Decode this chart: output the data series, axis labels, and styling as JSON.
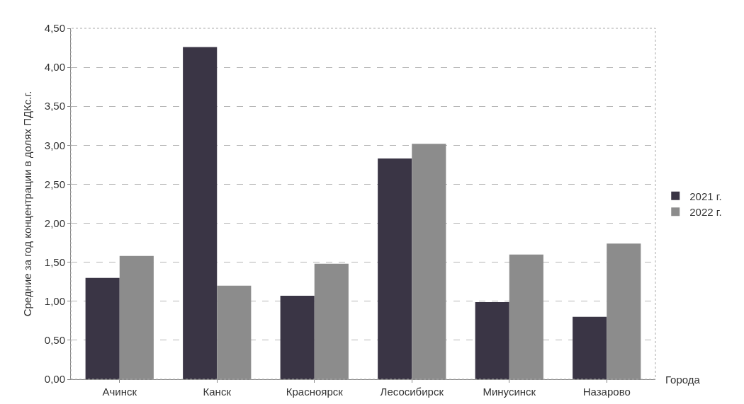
{
  "chart_data": {
    "type": "bar",
    "xlabel": "Города",
    "ylabel": "Средние за год концентрации в долях ПДКс.г.",
    "categories": [
      "Ачинск",
      "Канск",
      "Красноярск",
      "Лесосибирск",
      "Минусинск",
      "Назарово"
    ],
    "series": [
      {
        "name": "2021 г.",
        "color": "#3a3545",
        "values": [
          1.3,
          4.26,
          1.07,
          2.83,
          0.99,
          0.8
        ]
      },
      {
        "name": "2022 г.",
        "color": "#8c8c8c",
        "values": [
          1.58,
          1.2,
          1.48,
          3.02,
          1.6,
          1.74
        ]
      }
    ],
    "ylim": [
      0,
      4.5
    ],
    "yticks": [
      {
        "value": 0,
        "label": "0,00"
      },
      {
        "value": 0.5,
        "label": "0,50"
      },
      {
        "value": 1,
        "label": "1,00"
      },
      {
        "value": 1.5,
        "label": "1,50"
      },
      {
        "value": 2,
        "label": "2,00"
      },
      {
        "value": 2.5,
        "label": "2,50"
      },
      {
        "value": 3,
        "label": "3,00"
      },
      {
        "value": 3.5,
        "label": "3,50"
      },
      {
        "value": 4,
        "label": "4,00"
      },
      {
        "value": 4.5,
        "label": "4,50"
      }
    ],
    "grid": "y",
    "legend": "right"
  }
}
